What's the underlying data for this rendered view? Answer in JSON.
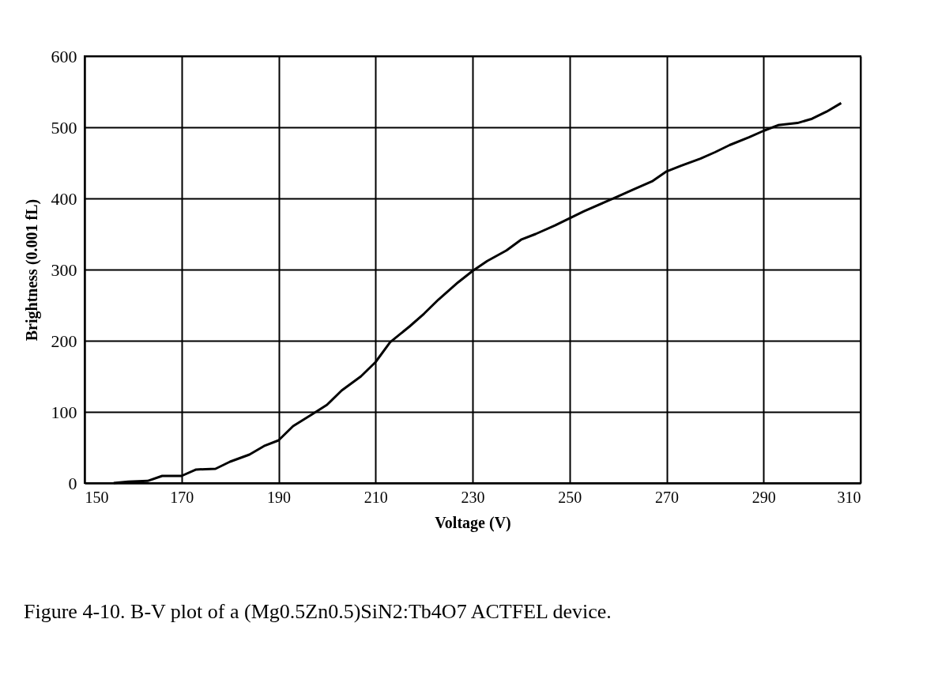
{
  "chart_data": {
    "type": "line",
    "xlabel": "Voltage   (V)",
    "ylabel": "Brightness   (0.001   fL)",
    "annotations": [
      "Figure 4-10.  B-V plot of a (Mg0.5Zn0.5)SiN2:Tb4O7 ACTFEL device."
    ],
    "x": [
      156,
      159,
      163,
      166,
      170,
      173,
      177,
      180,
      184,
      187,
      190,
      193,
      197,
      200,
      203,
      207,
      210,
      213,
      217,
      220,
      223,
      227,
      230,
      233,
      237,
      240,
      243,
      247,
      250,
      253,
      257,
      260,
      263,
      267,
      270,
      273,
      277,
      280,
      283,
      287,
      290,
      293,
      297,
      300,
      303,
      306
    ],
    "series": [
      {
        "color": "#000000",
        "values": [
          0,
          2,
          3,
          10,
          10,
          19,
          20,
          30,
          40,
          52,
          60,
          80,
          97,
          110,
          130,
          150,
          170,
          198,
          220,
          238,
          258,
          282,
          298,
          312,
          327,
          342,
          350,
          362,
          372,
          382,
          394,
          403,
          412,
          424,
          438,
          446,
          456,
          465,
          475,
          486,
          495,
          503,
          506,
          512,
          522,
          534
        ]
      }
    ],
    "xlim": [
      150,
      310
    ],
    "xticks": [
      150,
      170,
      190,
      210,
      230,
      250,
      270,
      290,
      310
    ],
    "ylim": [
      0,
      600
    ],
    "yticks": [
      0,
      100,
      200,
      300,
      400,
      500,
      600
    ],
    "grid": true,
    "legend": false,
    "marker": "none",
    "line_style": "solid"
  }
}
